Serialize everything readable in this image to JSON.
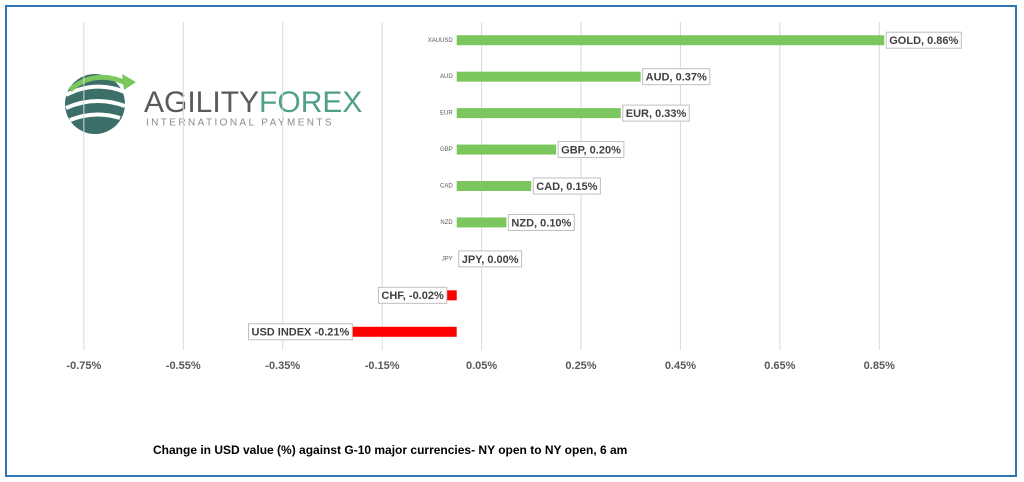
{
  "logo": {
    "name_part1": "AGILITY",
    "name_part2": "FOREX",
    "tagline": "INTERNATIONAL PAYMENTS"
  },
  "chart_data": {
    "type": "barh",
    "title": "Change in  USD value (%)  against  G-10 major currencies-  NY open to  NY open, 6 am",
    "categories": [
      "XAUUSD",
      "AUD",
      "EUR",
      "GBP",
      "CAD",
      "NZD",
      "JPY",
      null,
      null
    ],
    "values": [
      0.86,
      0.37,
      0.33,
      0.2,
      0.15,
      0.1,
      0.0,
      -0.02,
      -0.21
    ],
    "value_labels": [
      "GOLD, 0.86%",
      "AUD, 0.37%",
      "EUR, 0.33%",
      "GBP, 0.20%",
      "CAD, 0.15%",
      "NZD, 0.10%",
      "JPY, 0.00%",
      "CHF, -0.02%",
      "USD INDEX -0.21%"
    ],
    "colors": [
      "#7cc65e",
      "#7cc65e",
      "#7cc65e",
      "#7cc65e",
      "#7cc65e",
      "#7cc65e",
      "#7cc65e",
      "#ff0000",
      "#ff0000"
    ],
    "xlim": [
      -0.8,
      0.95
    ],
    "xticks": [
      {
        "value": -0.75,
        "label": "-0.75%"
      },
      {
        "value": -0.55,
        "label": "-0.55%"
      },
      {
        "value": -0.35,
        "label": "-0.35%"
      },
      {
        "value": -0.15,
        "label": "-0.15%"
      },
      {
        "value": 0.05,
        "label": "0.05%"
      },
      {
        "value": 0.25,
        "label": "0.25%"
      },
      {
        "value": 0.45,
        "label": "0.45%"
      },
      {
        "value": 0.65,
        "label": "0.65%"
      },
      {
        "value": 0.85,
        "label": "0.85%"
      }
    ],
    "grid": true
  }
}
